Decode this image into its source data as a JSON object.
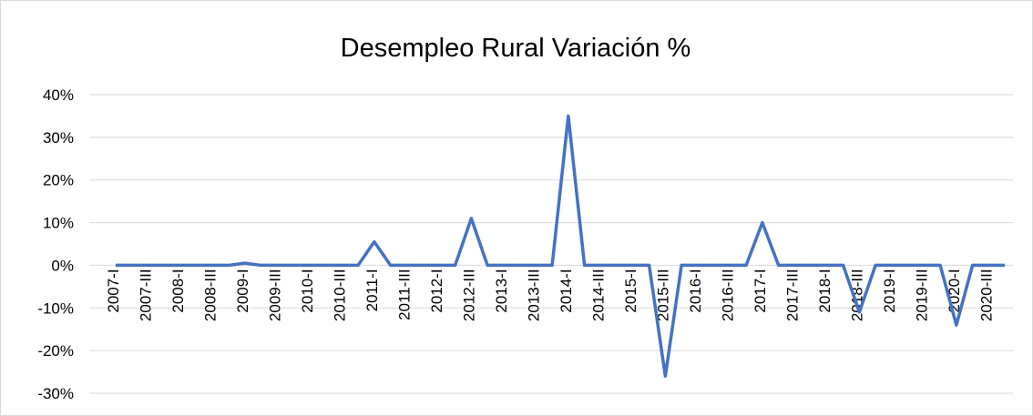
{
  "chart_data": {
    "type": "line",
    "title": "Desempleo Rural Variación %",
    "categories": [
      "2007-I",
      null,
      "2007-III",
      null,
      "2008-I",
      null,
      "2008-III",
      null,
      "2009-I",
      null,
      "2009-III",
      null,
      "2010-I",
      null,
      "2010-III",
      null,
      "2011-I",
      null,
      "2011-III",
      null,
      "2012-I",
      null,
      "2012-III",
      null,
      "2013-I",
      null,
      "2013-III",
      null,
      "2014-I",
      null,
      "2014-III",
      null,
      "2015-I",
      null,
      "2015-III",
      null,
      "2016-I",
      null,
      "2016-III",
      null,
      "2017-I",
      null,
      "2017-III",
      null,
      "2018-I",
      null,
      "2018-III",
      null,
      "2019-I",
      null,
      "2019-III",
      null,
      "2020-I",
      null,
      "2020-III",
      null
    ],
    "series": [
      {
        "name": "Desempleo Rural Variación %",
        "color": "#4472c4",
        "values": [
          0,
          0,
          0,
          0,
          0,
          0,
          0,
          0,
          0.5,
          0,
          0,
          0,
          0,
          0,
          0,
          0,
          5.5,
          0,
          0,
          0,
          0,
          0,
          11,
          0,
          0,
          0,
          0,
          0,
          35,
          0,
          0,
          0,
          0,
          0,
          -26,
          0,
          0,
          0,
          0,
          0,
          10,
          0,
          0,
          0,
          0,
          0,
          -11,
          0,
          0,
          0,
          0,
          0,
          -14,
          0,
          0,
          0
        ]
      }
    ],
    "ylim": [
      -30,
      40
    ],
    "yticks": [
      {
        "value": -30,
        "label": "-30%"
      },
      {
        "value": -20,
        "label": "-20%"
      },
      {
        "value": -10,
        "label": "-10%"
      },
      {
        "value": 0,
        "label": "0%"
      },
      {
        "value": 10,
        "label": "10%"
      },
      {
        "value": 20,
        "label": "20%"
      },
      {
        "value": 30,
        "label": "30%"
      },
      {
        "value": 40,
        "label": "40%"
      }
    ],
    "grid": true
  }
}
